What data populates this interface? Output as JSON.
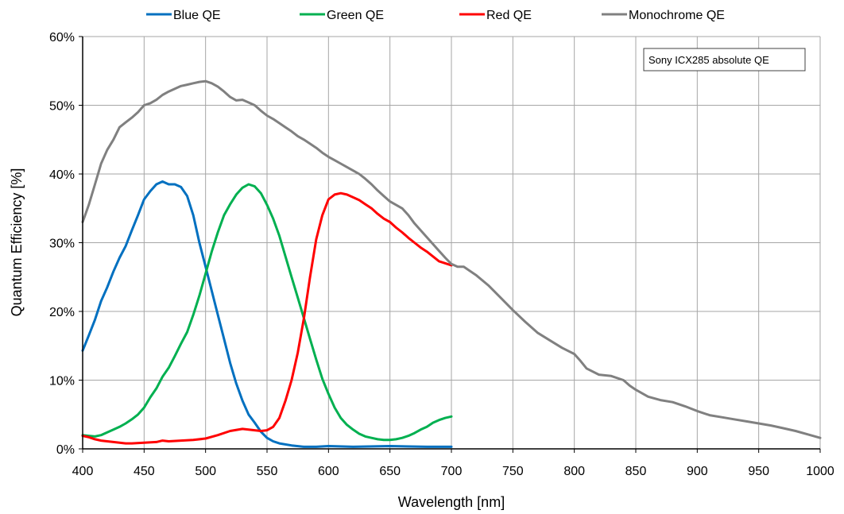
{
  "chart_data": {
    "type": "line",
    "xlabel": "Wavelength [nm]",
    "ylabel": "Quantum Efficiency [%]",
    "xlim": [
      400,
      1000
    ],
    "ylim": [
      0,
      60
    ],
    "x_ticks": [
      "400",
      "450",
      "500",
      "550",
      "600",
      "650",
      "700",
      "750",
      "800",
      "850",
      "900",
      "950",
      "1000"
    ],
    "y_ticks": [
      "0%",
      "10%",
      "20%",
      "30%",
      "40%",
      "50%",
      "60%"
    ],
    "grid": true,
    "legend_position": "top",
    "annotation": "Sony ICX285 absolute QE",
    "series": [
      {
        "name": "Blue QE",
        "color": "#0070C0",
        "points": [
          [
            400,
            14.3
          ],
          [
            405,
            16.5
          ],
          [
            410,
            18.8
          ],
          [
            415,
            21.5
          ],
          [
            420,
            23.5
          ],
          [
            425,
            25.8
          ],
          [
            430,
            27.8
          ],
          [
            435,
            29.5
          ],
          [
            440,
            31.8
          ],
          [
            445,
            34.0
          ],
          [
            450,
            36.3
          ],
          [
            455,
            37.5
          ],
          [
            460,
            38.5
          ],
          [
            465,
            38.9
          ],
          [
            470,
            38.5
          ],
          [
            475,
            38.5
          ],
          [
            480,
            38.1
          ],
          [
            485,
            36.8
          ],
          [
            490,
            34.0
          ],
          [
            495,
            30.0
          ],
          [
            500,
            26.5
          ],
          [
            505,
            23.0
          ],
          [
            510,
            19.5
          ],
          [
            515,
            16.0
          ],
          [
            520,
            12.5
          ],
          [
            525,
            9.5
          ],
          [
            530,
            7.0
          ],
          [
            535,
            5.0
          ],
          [
            540,
            3.8
          ],
          [
            545,
            2.5
          ],
          [
            550,
            1.6
          ],
          [
            555,
            1.1
          ],
          [
            560,
            0.8
          ],
          [
            570,
            0.5
          ],
          [
            580,
            0.3
          ],
          [
            590,
            0.3
          ],
          [
            600,
            0.4
          ],
          [
            620,
            0.3
          ],
          [
            650,
            0.4
          ],
          [
            680,
            0.3
          ],
          [
            700,
            0.3
          ]
        ]
      },
      {
        "name": "Green QE",
        "color": "#00B050",
        "points": [
          [
            400,
            2.0
          ],
          [
            405,
            1.9
          ],
          [
            410,
            1.8
          ],
          [
            415,
            2.0
          ],
          [
            420,
            2.4
          ],
          [
            425,
            2.8
          ],
          [
            430,
            3.2
          ],
          [
            435,
            3.7
          ],
          [
            440,
            4.3
          ],
          [
            445,
            5.0
          ],
          [
            450,
            6.0
          ],
          [
            455,
            7.5
          ],
          [
            460,
            8.8
          ],
          [
            465,
            10.5
          ],
          [
            470,
            11.8
          ],
          [
            475,
            13.5
          ],
          [
            480,
            15.3
          ],
          [
            485,
            17.0
          ],
          [
            490,
            19.5
          ],
          [
            495,
            22.3
          ],
          [
            500,
            25.5
          ],
          [
            505,
            28.7
          ],
          [
            510,
            31.5
          ],
          [
            515,
            34.0
          ],
          [
            520,
            35.6
          ],
          [
            525,
            37.0
          ],
          [
            530,
            38.0
          ],
          [
            535,
            38.5
          ],
          [
            540,
            38.2
          ],
          [
            545,
            37.2
          ],
          [
            550,
            35.5
          ],
          [
            555,
            33.5
          ],
          [
            560,
            31.0
          ],
          [
            565,
            28.0
          ],
          [
            570,
            25.0
          ],
          [
            575,
            22.0
          ],
          [
            580,
            19.0
          ],
          [
            585,
            16.0
          ],
          [
            590,
            13.0
          ],
          [
            595,
            10.2
          ],
          [
            600,
            8.0
          ],
          [
            605,
            6.0
          ],
          [
            610,
            4.5
          ],
          [
            615,
            3.5
          ],
          [
            620,
            2.8
          ],
          [
            625,
            2.2
          ],
          [
            630,
            1.8
          ],
          [
            635,
            1.6
          ],
          [
            640,
            1.4
          ],
          [
            645,
            1.3
          ],
          [
            650,
            1.3
          ],
          [
            655,
            1.4
          ],
          [
            660,
            1.6
          ],
          [
            665,
            1.9
          ],
          [
            670,
            2.3
          ],
          [
            675,
            2.8
          ],
          [
            680,
            3.2
          ],
          [
            685,
            3.8
          ],
          [
            690,
            4.2
          ],
          [
            695,
            4.5
          ],
          [
            700,
            4.7
          ]
        ]
      },
      {
        "name": "Red QE",
        "color": "#FF0000",
        "points": [
          [
            400,
            1.9
          ],
          [
            405,
            1.7
          ],
          [
            410,
            1.4
          ],
          [
            415,
            1.2
          ],
          [
            420,
            1.1
          ],
          [
            425,
            1.0
          ],
          [
            430,
            0.9
          ],
          [
            435,
            0.8
          ],
          [
            440,
            0.8
          ],
          [
            450,
            0.9
          ],
          [
            460,
            1.0
          ],
          [
            465,
            1.2
          ],
          [
            470,
            1.1
          ],
          [
            480,
            1.2
          ],
          [
            490,
            1.3
          ],
          [
            500,
            1.5
          ],
          [
            510,
            2.0
          ],
          [
            520,
            2.6
          ],
          [
            530,
            2.9
          ],
          [
            540,
            2.7
          ],
          [
            545,
            2.6
          ],
          [
            550,
            2.7
          ],
          [
            555,
            3.2
          ],
          [
            560,
            4.5
          ],
          [
            565,
            7.0
          ],
          [
            570,
            10.0
          ],
          [
            575,
            14.0
          ],
          [
            580,
            19.0
          ],
          [
            585,
            25.0
          ],
          [
            590,
            30.5
          ],
          [
            595,
            34.0
          ],
          [
            600,
            36.3
          ],
          [
            605,
            37.0
          ],
          [
            610,
            37.2
          ],
          [
            615,
            37.0
          ],
          [
            620,
            36.6
          ],
          [
            625,
            36.2
          ],
          [
            630,
            35.6
          ],
          [
            635,
            35.0
          ],
          [
            640,
            34.2
          ],
          [
            645,
            33.5
          ],
          [
            650,
            33.0
          ],
          [
            655,
            32.2
          ],
          [
            660,
            31.5
          ],
          [
            665,
            30.7
          ],
          [
            670,
            30.0
          ],
          [
            675,
            29.3
          ],
          [
            680,
            28.7
          ],
          [
            685,
            28.0
          ],
          [
            690,
            27.3
          ],
          [
            695,
            27.0
          ],
          [
            700,
            26.7
          ]
        ]
      },
      {
        "name": "Monochrome QE",
        "color": "#808080",
        "points": [
          [
            400,
            33.0
          ],
          [
            405,
            35.5
          ],
          [
            410,
            38.5
          ],
          [
            415,
            41.5
          ],
          [
            420,
            43.5
          ],
          [
            425,
            45.0
          ],
          [
            430,
            46.8
          ],
          [
            435,
            47.5
          ],
          [
            440,
            48.2
          ],
          [
            445,
            49.0
          ],
          [
            450,
            50.0
          ],
          [
            455,
            50.3
          ],
          [
            460,
            50.8
          ],
          [
            465,
            51.5
          ],
          [
            470,
            52.0
          ],
          [
            475,
            52.4
          ],
          [
            480,
            52.8
          ],
          [
            485,
            53.0
          ],
          [
            490,
            53.2
          ],
          [
            495,
            53.4
          ],
          [
            500,
            53.5
          ],
          [
            505,
            53.2
          ],
          [
            510,
            52.7
          ],
          [
            515,
            52.0
          ],
          [
            520,
            51.2
          ],
          [
            525,
            50.7
          ],
          [
            530,
            50.8
          ],
          [
            535,
            50.4
          ],
          [
            540,
            50.0
          ],
          [
            545,
            49.2
          ],
          [
            550,
            48.5
          ],
          [
            555,
            48.0
          ],
          [
            560,
            47.4
          ],
          [
            565,
            46.8
          ],
          [
            570,
            46.2
          ],
          [
            575,
            45.5
          ],
          [
            580,
            45.0
          ],
          [
            585,
            44.4
          ],
          [
            590,
            43.8
          ],
          [
            595,
            43.1
          ],
          [
            600,
            42.5
          ],
          [
            605,
            42.0
          ],
          [
            610,
            41.5
          ],
          [
            615,
            41.0
          ],
          [
            620,
            40.5
          ],
          [
            625,
            40.0
          ],
          [
            630,
            39.3
          ],
          [
            635,
            38.5
          ],
          [
            640,
            37.6
          ],
          [
            645,
            36.8
          ],
          [
            650,
            36.0
          ],
          [
            655,
            35.5
          ],
          [
            660,
            35.0
          ],
          [
            665,
            34.0
          ],
          [
            670,
            32.8
          ],
          [
            675,
            31.8
          ],
          [
            680,
            30.8
          ],
          [
            685,
            29.8
          ],
          [
            690,
            28.8
          ],
          [
            695,
            27.8
          ],
          [
            700,
            26.9
          ],
          [
            705,
            26.5
          ],
          [
            710,
            26.5
          ],
          [
            720,
            25.3
          ],
          [
            730,
            23.8
          ],
          [
            740,
            22.0
          ],
          [
            750,
            20.2
          ],
          [
            760,
            18.5
          ],
          [
            770,
            16.9
          ],
          [
            780,
            15.8
          ],
          [
            790,
            14.7
          ],
          [
            800,
            13.8
          ],
          [
            805,
            12.8
          ],
          [
            810,
            11.7
          ],
          [
            820,
            10.8
          ],
          [
            830,
            10.6
          ],
          [
            840,
            10.0
          ],
          [
            845,
            9.2
          ],
          [
            850,
            8.6
          ],
          [
            860,
            7.6
          ],
          [
            870,
            7.1
          ],
          [
            880,
            6.8
          ],
          [
            890,
            6.2
          ],
          [
            900,
            5.5
          ],
          [
            910,
            4.9
          ],
          [
            920,
            4.6
          ],
          [
            930,
            4.3
          ],
          [
            940,
            4.0
          ],
          [
            950,
            3.7
          ],
          [
            960,
            3.4
          ],
          [
            970,
            3.0
          ],
          [
            980,
            2.6
          ],
          [
            990,
            2.1
          ],
          [
            1000,
            1.6
          ]
        ]
      }
    ]
  }
}
